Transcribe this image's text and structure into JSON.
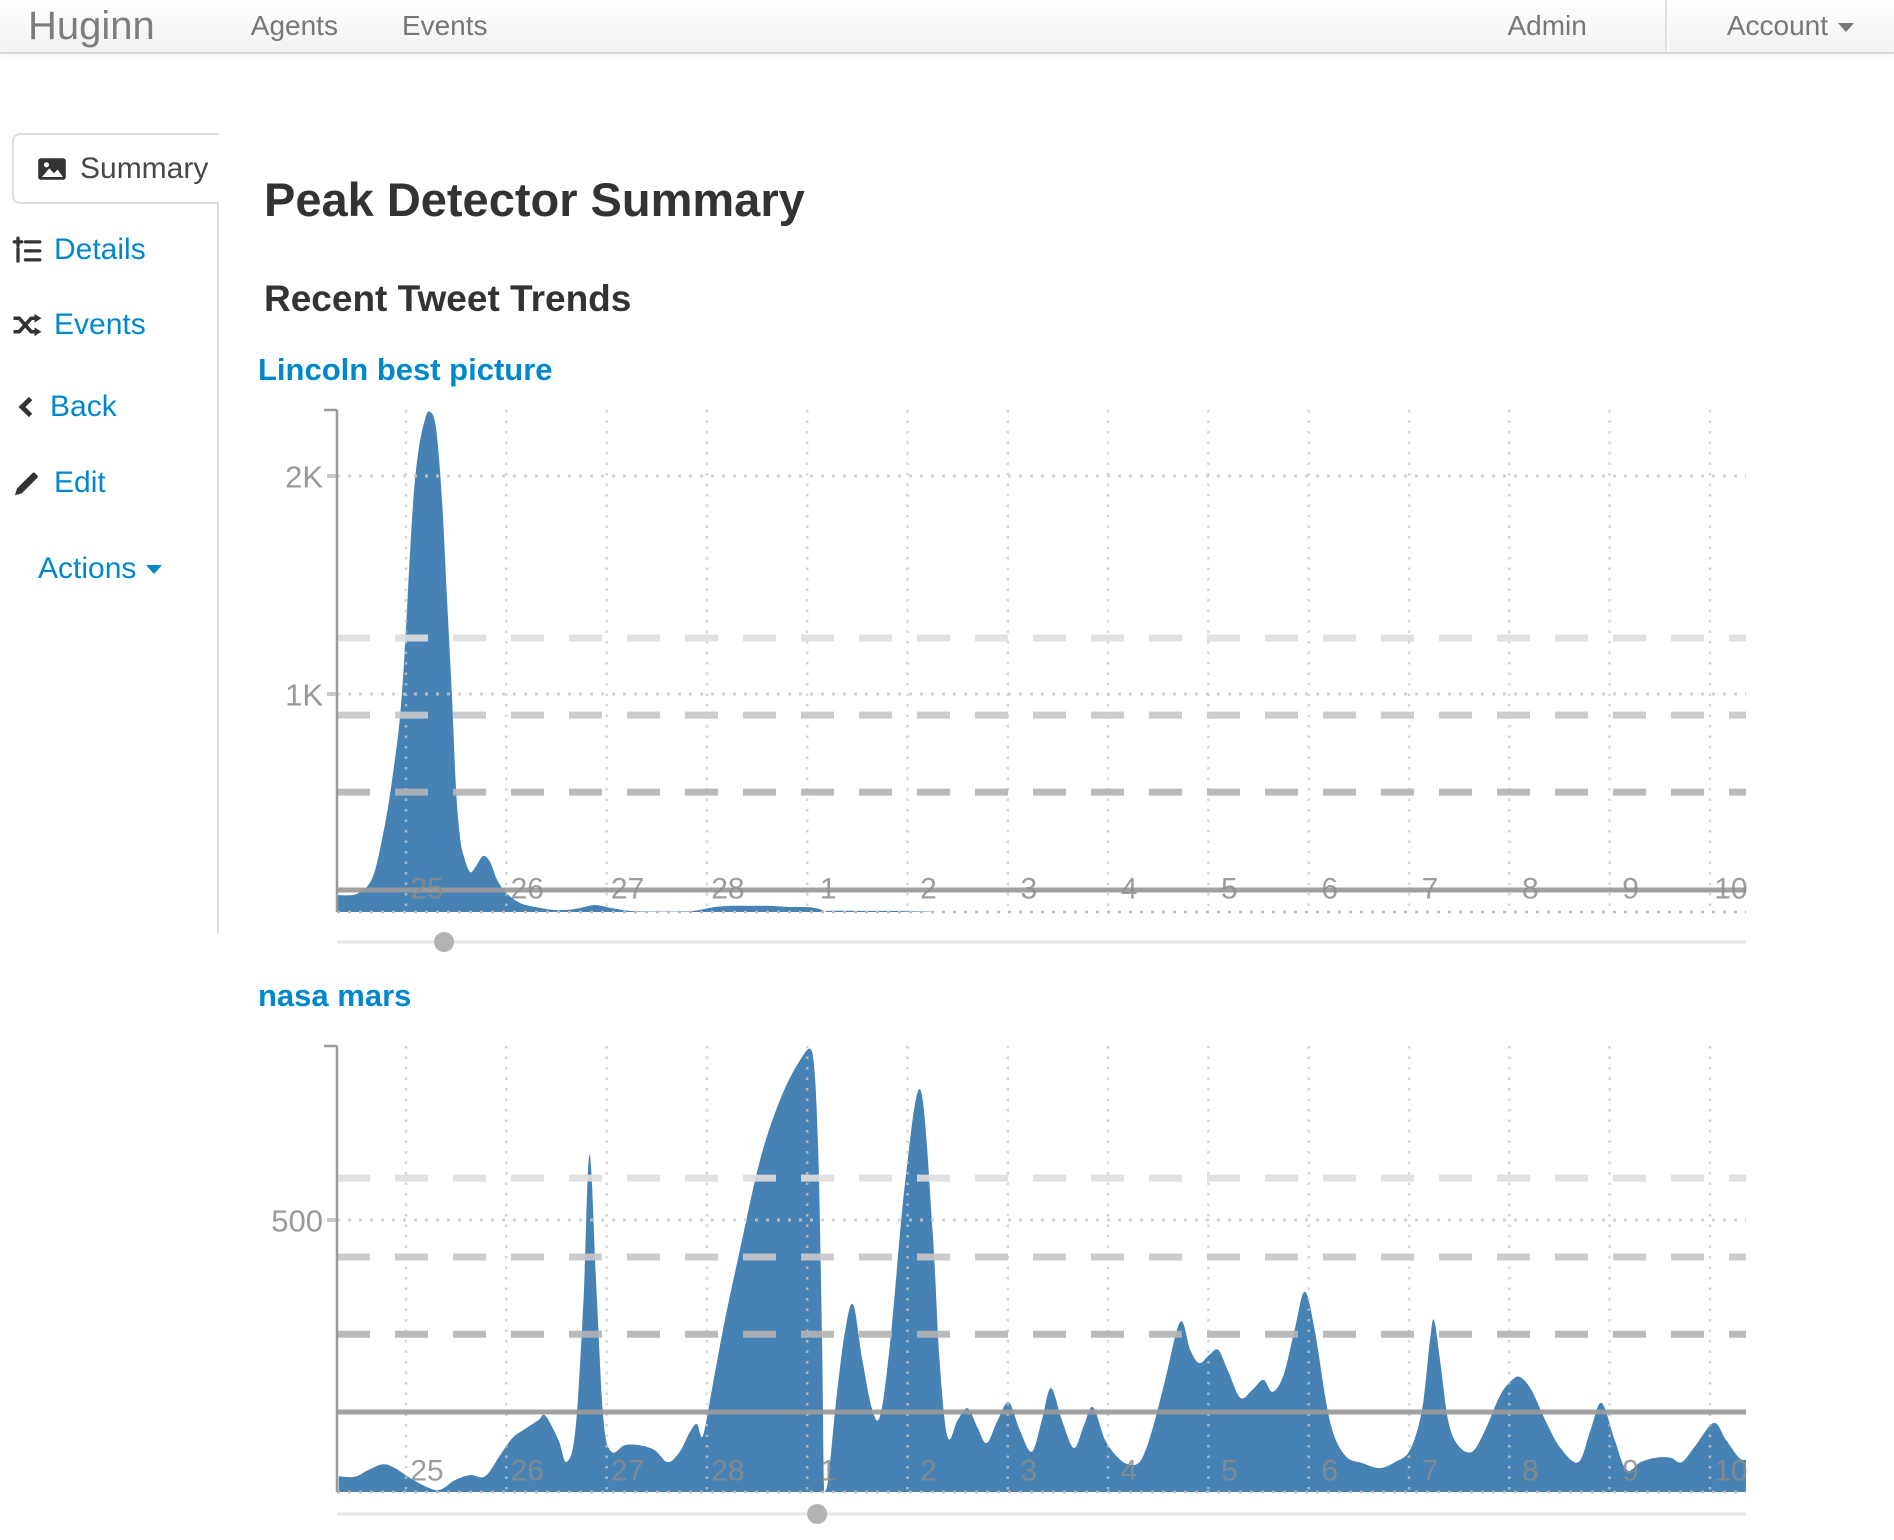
{
  "navbar": {
    "brand": "Huginn",
    "links": [
      {
        "label": "Agents"
      },
      {
        "label": "Events"
      }
    ],
    "right_links": [
      {
        "label": "Admin"
      },
      {
        "label": "Account"
      }
    ]
  },
  "sidebar": {
    "items": [
      {
        "label": "Summary",
        "icon": "image-icon",
        "active": true
      },
      {
        "label": "Details",
        "icon": "details-tree-icon"
      },
      {
        "label": "Events",
        "icon": "shuffle-icon"
      },
      {
        "label": "Back",
        "icon": "chevron-left-icon"
      },
      {
        "label": "Edit",
        "icon": "pencil-icon"
      },
      {
        "label": "Actions",
        "icon": "caret-down-icon"
      }
    ]
  },
  "main": {
    "title": "Peak Detector Summary",
    "subtitle": "Recent Tweet Trends"
  },
  "colors": {
    "accent_blue": "#0088cc",
    "area_fill": "#4682b4",
    "axis_gray": "#9a9a9a",
    "grid_dotted": "#c9c9c9",
    "baseline_dotted": "#bdbdbd",
    "threshold_dark": "#b3b3b3",
    "threshold_mid": "#c7c7c7",
    "threshold_light": "#dedede",
    "mean_line": "#9a9a9a",
    "tick_label": "#8c8c8c",
    "y_label": "#999999",
    "slider_line": "#e5e5e5",
    "slider_handle": "#b3b3b3"
  },
  "chart_data": [
    {
      "type": "area",
      "title": "Lincoln best picture",
      "x_tick_labels": [
        "25",
        "26",
        "27",
        "28",
        "1",
        "2",
        "3",
        "4",
        "5",
        "6",
        "7",
        "8",
        "9",
        "10"
      ],
      "y_ticks": [
        {
          "value": 2000,
          "label": "2K"
        },
        {
          "value": 1000,
          "label": "1K"
        }
      ],
      "ylim": [
        0,
        2300
      ],
      "mean_line_value": 101,
      "threshold_line_values": [
        550,
        903,
        1257
      ],
      "peak_marker_day": 0.17,
      "points": [
        [
          -0.9,
          78
        ],
        [
          -0.7,
          83
        ],
        [
          -0.55,
          151
        ],
        [
          -0.45,
          330
        ],
        [
          -0.35,
          600
        ],
        [
          -0.25,
          1000
        ],
        [
          -0.15,
          1800
        ],
        [
          -0.09,
          2100
        ],
        [
          -0.02,
          2260
        ],
        [
          0.03,
          2295
        ],
        [
          0.09,
          2220
        ],
        [
          0.15,
          1890
        ],
        [
          0.2,
          1430
        ],
        [
          0.25,
          975
        ],
        [
          0.29,
          560
        ],
        [
          0.33,
          340
        ],
        [
          0.37,
          252
        ],
        [
          0.43,
          183
        ],
        [
          0.49,
          211
        ],
        [
          0.56,
          257
        ],
        [
          0.63,
          229
        ],
        [
          0.7,
          147
        ],
        [
          0.8,
          83
        ],
        [
          0.93,
          41
        ],
        [
          1.08,
          23
        ],
        [
          1.28,
          9
        ],
        [
          1.48,
          14
        ],
        [
          1.67,
          32
        ],
        [
          1.84,
          18
        ],
        [
          2.02,
          5
        ],
        [
          2.22,
          2
        ],
        [
          2.42,
          2
        ],
        [
          2.62,
          3
        ],
        [
          2.77,
          14
        ],
        [
          2.87,
          23
        ],
        [
          3.02,
          28
        ],
        [
          3.22,
          28
        ],
        [
          3.42,
          28
        ],
        [
          3.62,
          23
        ],
        [
          3.77,
          23
        ],
        [
          3.87,
          18
        ],
        [
          3.94,
          9
        ],
        [
          3.96,
          0
        ],
        [
          4.02,
          5
        ],
        [
          4.32,
          5
        ],
        [
          4.72,
          5
        ],
        [
          5.1,
          2
        ],
        [
          5.3,
          0
        ],
        [
          13.15,
          0
        ]
      ]
    },
    {
      "type": "area",
      "title": "nasa mars",
      "x_tick_labels": [
        "25",
        "26",
        "27",
        "28",
        "1",
        "2",
        "3",
        "4",
        "5",
        "6",
        "7",
        "8",
        "9",
        "10"
      ],
      "y_ticks": [
        {
          "value": 500,
          "label": "500"
        }
      ],
      "ylim": [
        0,
        820
      ],
      "mean_line_value": 147,
      "threshold_line_values": [
        290,
        432,
        577
      ],
      "peak_marker_day": 3.89,
      "points": [
        [
          -0.88,
          29
        ],
        [
          -0.72,
          28
        ],
        [
          -0.59,
          40
        ],
        [
          -0.44,
          51
        ],
        [
          -0.32,
          44
        ],
        [
          -0.17,
          26
        ],
        [
          0,
          9
        ],
        [
          0.13,
          4
        ],
        [
          0.28,
          22
        ],
        [
          0.43,
          31
        ],
        [
          0.58,
          29
        ],
        [
          0.73,
          68
        ],
        [
          0.85,
          99
        ],
        [
          0.96,
          114
        ],
        [
          1.11,
          132
        ],
        [
          1.18,
          140
        ],
        [
          1.31,
          96
        ],
        [
          1.39,
          55
        ],
        [
          1.48,
          114
        ],
        [
          1.56,
          353
        ],
        [
          1.62,
          620
        ],
        [
          1.69,
          371
        ],
        [
          1.76,
          132
        ],
        [
          1.84,
          74
        ],
        [
          1.97,
          86
        ],
        [
          2.12,
          86
        ],
        [
          2.27,
          77
        ],
        [
          2.4,
          55
        ],
        [
          2.52,
          74
        ],
        [
          2.62,
          110
        ],
        [
          2.69,
          125
        ],
        [
          2.75,
          103
        ],
        [
          2.84,
          188
        ],
        [
          2.97,
          316
        ],
        [
          3.12,
          445
        ],
        [
          3.32,
          610
        ],
        [
          3.52,
          721
        ],
        [
          3.72,
          794
        ],
        [
          3.84,
          809
        ],
        [
          3.9,
          629
        ],
        [
          3.94,
          261
        ],
        [
          3.96,
          0
        ],
        [
          4.0,
          22
        ],
        [
          4.08,
          169
        ],
        [
          4.17,
          298
        ],
        [
          4.25,
          344
        ],
        [
          4.34,
          243
        ],
        [
          4.44,
          151
        ],
        [
          4.52,
          142
        ],
        [
          4.62,
          279
        ],
        [
          4.77,
          574
        ],
        [
          4.92,
          739
        ],
        [
          5.04,
          482
        ],
        [
          5.11,
          243
        ],
        [
          5.19,
          101
        ],
        [
          5.29,
          132
        ],
        [
          5.39,
          154
        ],
        [
          5.49,
          118
        ],
        [
          5.58,
          90
        ],
        [
          5.69,
          132
        ],
        [
          5.8,
          165
        ],
        [
          5.91,
          114
        ],
        [
          6.03,
          74
        ],
        [
          6.13,
          132
        ],
        [
          6.22,
          191
        ],
        [
          6.33,
          132
        ],
        [
          6.45,
          81
        ],
        [
          6.55,
          123
        ],
        [
          6.64,
          156
        ],
        [
          6.76,
          96
        ],
        [
          6.89,
          63
        ],
        [
          7.01,
          50
        ],
        [
          7.12,
          59
        ],
        [
          7.23,
          114
        ],
        [
          7.36,
          206
        ],
        [
          7.51,
          313
        ],
        [
          7.61,
          261
        ],
        [
          7.7,
          237
        ],
        [
          7.8,
          252
        ],
        [
          7.89,
          261
        ],
        [
          7.99,
          221
        ],
        [
          8.11,
          173
        ],
        [
          8.23,
          188
        ],
        [
          8.34,
          206
        ],
        [
          8.43,
          184
        ],
        [
          8.54,
          215
        ],
        [
          8.65,
          298
        ],
        [
          8.75,
          368
        ],
        [
          8.85,
          298
        ],
        [
          9.0,
          132
        ],
        [
          9.15,
          68
        ],
        [
          9.33,
          53
        ],
        [
          9.5,
          44
        ],
        [
          9.65,
          55
        ],
        [
          9.8,
          77
        ],
        [
          9.92,
          151
        ],
        [
          10.0,
          279
        ],
        [
          10.04,
          316
        ],
        [
          10.1,
          243
        ],
        [
          10.18,
          132
        ],
        [
          10.28,
          86
        ],
        [
          10.42,
          74
        ],
        [
          10.55,
          114
        ],
        [
          10.7,
          178
        ],
        [
          10.82,
          206
        ],
        [
          10.9,
          211
        ],
        [
          11.01,
          188
        ],
        [
          11.15,
          132
        ],
        [
          11.3,
          81
        ],
        [
          11.48,
          55
        ],
        [
          11.6,
          114
        ],
        [
          11.71,
          164
        ],
        [
          11.84,
          96
        ],
        [
          11.96,
          40
        ],
        [
          12.1,
          55
        ],
        [
          12.25,
          63
        ],
        [
          12.4,
          63
        ],
        [
          12.51,
          55
        ],
        [
          12.65,
          86
        ],
        [
          12.83,
          127
        ],
        [
          12.95,
          96
        ],
        [
          13.08,
          63
        ],
        [
          13.15,
          59
        ]
      ]
    }
  ]
}
